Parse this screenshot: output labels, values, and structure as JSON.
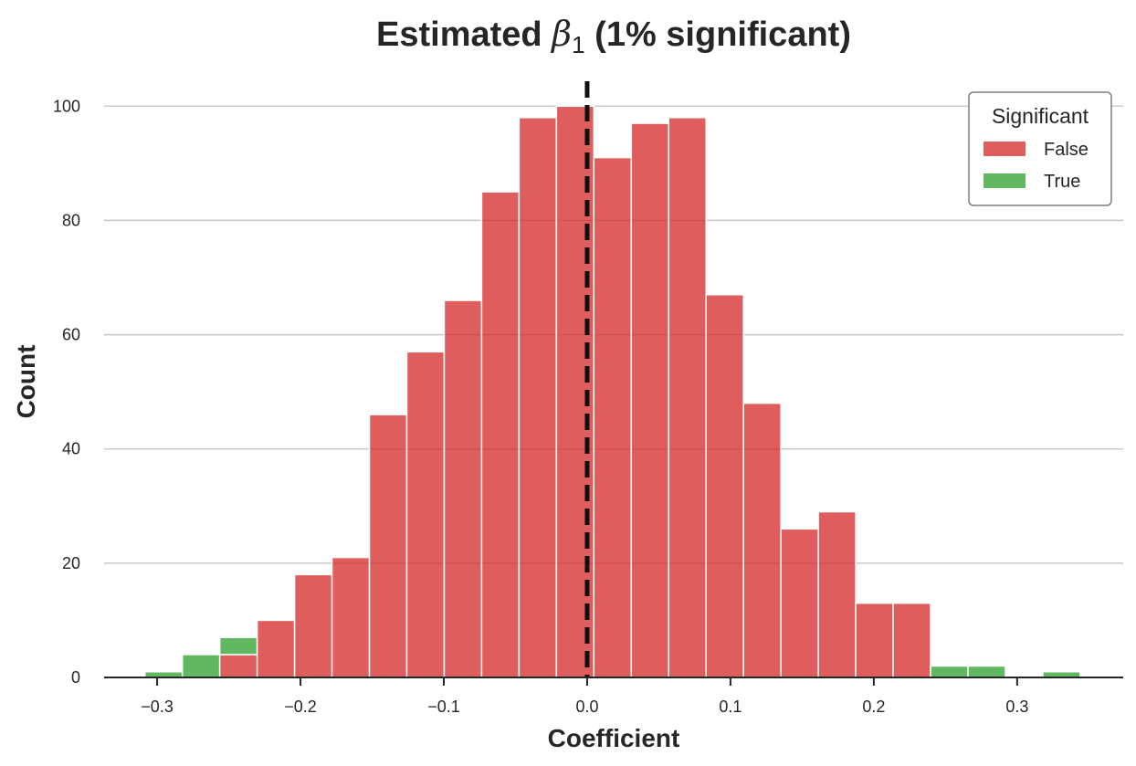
{
  "chart_data": {
    "type": "bar",
    "title_prefix": "Estimated ",
    "title_symbol": "β",
    "title_subscript": "1",
    "title_suffix": " (1% significant)",
    "xlabel": "Coefficient",
    "ylabel": "Count",
    "xlim": [
      -0.337,
      0.374
    ],
    "ylim": [
      0,
      105
    ],
    "xticks": [
      -0.3,
      -0.2,
      -0.1,
      0.0,
      0.1,
      0.2,
      0.3
    ],
    "xtick_labels": [
      "−0.3",
      "−0.2",
      "−0.1",
      "0.0",
      "0.1",
      "0.2",
      "0.3"
    ],
    "yticks": [
      0,
      20,
      40,
      60,
      80,
      100
    ],
    "ytick_labels": [
      "0",
      "20",
      "40",
      "60",
      "80",
      "100"
    ],
    "grid": "horizontal",
    "stacked": true,
    "bin_start": -0.3085,
    "bin_width": 0.0261,
    "reference_line": {
      "x": 0.0,
      "style": "dashed",
      "color": "#111111"
    },
    "legend": {
      "title": "Significant",
      "position": "top-right"
    },
    "series": [
      {
        "name": "False",
        "color": "#d62728",
        "values": [
          0,
          0,
          4,
          10,
          18,
          21,
          46,
          57,
          66,
          85,
          98,
          100,
          91,
          97,
          98,
          67,
          48,
          26,
          29,
          13,
          13,
          0,
          0,
          0,
          0,
          0
        ]
      },
      {
        "name": "True",
        "color": "#2ca02c",
        "values": [
          1,
          4,
          3,
          0,
          0,
          0,
          0,
          0,
          0,
          0,
          0,
          0,
          0,
          0,
          0,
          0,
          0,
          0,
          0,
          0,
          0,
          2,
          2,
          0,
          1,
          0
        ]
      }
    ]
  }
}
